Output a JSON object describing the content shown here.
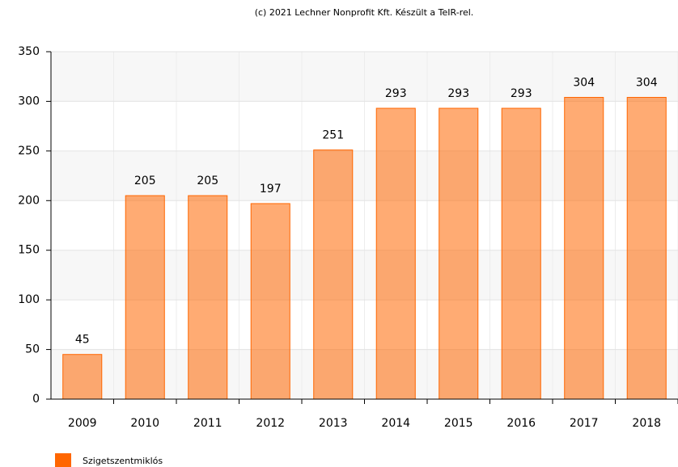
{
  "chart_data": {
    "type": "bar",
    "title": "(c) 2021 Lechner Nonprofit Kft. Készült a TeIR-rel.",
    "categories": [
      "2009",
      "2010",
      "2011",
      "2012",
      "2013",
      "2014",
      "2015",
      "2016",
      "2017",
      "2018"
    ],
    "series": [
      {
        "name": "Szigetszentmiklós",
        "color": "#ff6600",
        "values": [
          45,
          205,
          205,
          197,
          251,
          293,
          293,
          293,
          304,
          304
        ]
      }
    ],
    "ylim": [
      0,
      350
    ],
    "yticks": [
      0,
      50,
      100,
      150,
      200,
      250,
      300,
      350
    ],
    "grid": true,
    "legend": "bottom-left"
  }
}
